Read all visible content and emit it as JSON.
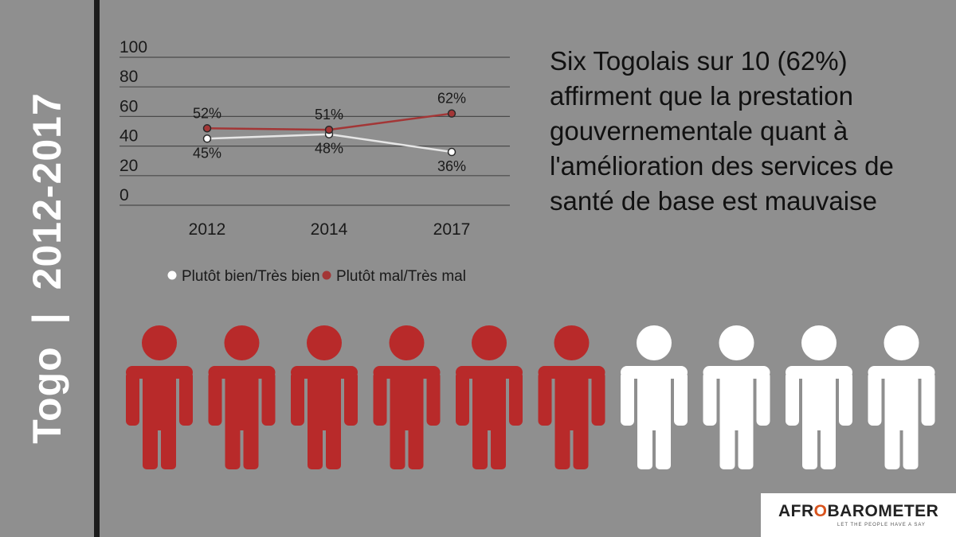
{
  "side_title": {
    "left": "Togo",
    "separator": "|",
    "right": "2012-2017"
  },
  "headline": "Six Togolais sur 10 (62%) affirment que la prestation gouvernementale quant à l'amélioration des services de santé de base est mauvaise",
  "chart_data": {
    "type": "line",
    "title": "",
    "xlabel": "",
    "ylabel": "",
    "categories": [
      "2012",
      "2014",
      "2017"
    ],
    "y_ticks": [
      "0",
      "20",
      "40",
      "60",
      "80",
      "100"
    ],
    "ylim": [
      0,
      100
    ],
    "grid": true,
    "legend_position": "bottom",
    "series": [
      {
        "name": "Plutôt bien/Très bien",
        "values": [
          45,
          48,
          36
        ],
        "labels": [
          "45%",
          "48%",
          "36%"
        ],
        "color": "#e6e6e6"
      },
      {
        "name": "Plutôt mal/Très mal",
        "values": [
          52,
          51,
          62
        ],
        "labels": [
          "52%",
          "51%",
          "62%"
        ],
        "color": "#a33636"
      }
    ]
  },
  "figures": {
    "total": 10,
    "highlighted": 6,
    "highlight_color": "#b82a2a",
    "other_color": "#ffffff"
  },
  "logo": {
    "text_part1": "AFR",
    "text_part2": "O",
    "text_part3": "BAROMETER",
    "tagline": "LET THE PEOPLE HAVE A SAY",
    "accent": "#d9541e"
  }
}
